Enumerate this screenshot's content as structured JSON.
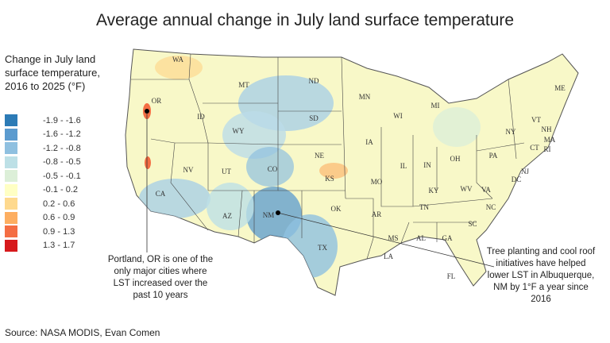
{
  "title": "Average annual change in July land surface temperature",
  "legend": {
    "title": "Change in July land surface temperature, 2016 to 2025 (°F)",
    "items": [
      {
        "label": "-1.9 - -1.6",
        "color": "#2c7bb6"
      },
      {
        "label": "-1.6 - -1.2",
        "color": "#5b9bcf"
      },
      {
        "label": "-1.2 - -0.8",
        "color": "#8fc0e0"
      },
      {
        "label": "-0.8 - -0.5",
        "color": "#bde0e6"
      },
      {
        "label": "-0.5 - -0.1",
        "color": "#dcefd8"
      },
      {
        "label": "-0.1 - 0.2",
        "color": "#ffffc4"
      },
      {
        "label": "0.2 - 0.6",
        "color": "#fed98e"
      },
      {
        "label": "0.6 - 0.9",
        "color": "#fdae61"
      },
      {
        "label": "0.9 - 1.3",
        "color": "#f46d43"
      },
      {
        "label": "1.3 - 1.7",
        "color": "#d7191c"
      }
    ]
  },
  "states": [
    "WA",
    "OR",
    "ID",
    "MT",
    "WY",
    "ND",
    "SD",
    "NE",
    "CO",
    "UT",
    "NV",
    "CA",
    "AZ",
    "NM",
    "KS",
    "OK",
    "TX",
    "MN",
    "IA",
    "MO",
    "AR",
    "LA",
    "MS",
    "AL",
    "GA",
    "FL",
    "TN",
    "KY",
    "IL",
    "IN",
    "OH",
    "MI",
    "WI",
    "WV",
    "VA",
    "NC",
    "SC",
    "PA",
    "NY",
    "ME",
    "VT",
    "NH",
    "MA",
    "CT",
    "RI",
    "NJ",
    "DC"
  ],
  "annotations": {
    "portland": "Portland, OR is one of the only major cities where LST increased over the past 10 years",
    "albuquerque": "Tree planting and cool roof initiatives have helped lower LST in Albuquerque, NM by 1°F a year since 2016"
  },
  "source": "Source: NASA MODIS, Evan Comen"
}
